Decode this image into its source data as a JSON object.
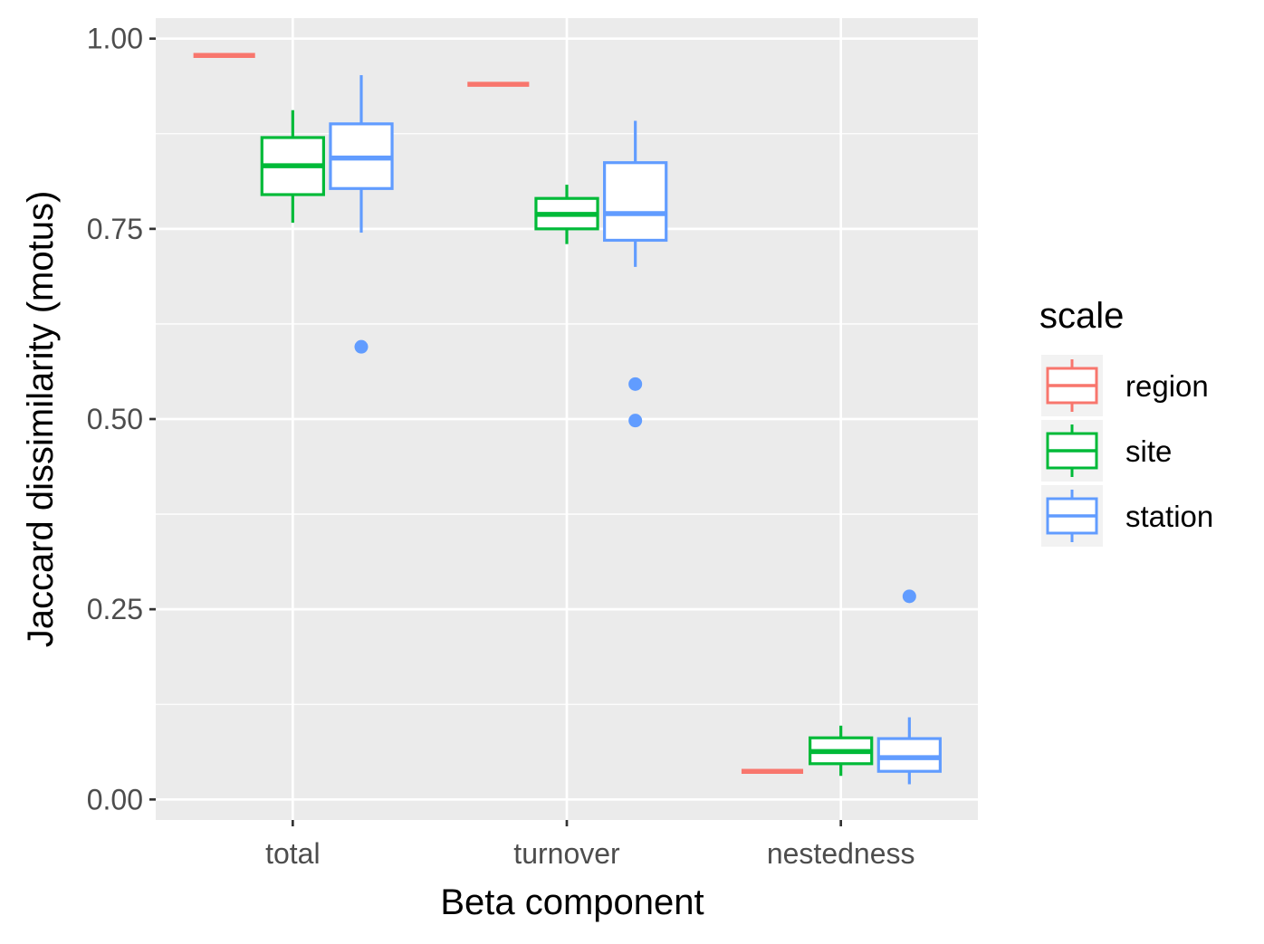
{
  "chart_data": {
    "type": "boxplot",
    "xlabel": "Beta component",
    "ylabel": "Jaccard dissimilarity (motus)",
    "categories": [
      "total",
      "turnover",
      "nestedness"
    ],
    "ylim": [
      -0.027,
      1.027
    ],
    "yticks": [
      {
        "value": 0.0,
        "label": "0.00"
      },
      {
        "value": 0.25,
        "label": "0.25"
      },
      {
        "value": 0.5,
        "label": "0.50"
      },
      {
        "value": 0.75,
        "label": "0.75"
      },
      {
        "value": 1.0,
        "label": "1.00"
      }
    ],
    "grid": true,
    "legend": {
      "title": "scale",
      "position": "right"
    },
    "series": [
      {
        "name": "region",
        "color": "#F8766D",
        "boxes": [
          {
            "category": "total",
            "min": 0.978,
            "q1": 0.978,
            "median": 0.978,
            "q3": 0.978,
            "max": 0.978,
            "outliers": []
          },
          {
            "category": "turnover",
            "min": 0.94,
            "q1": 0.94,
            "median": 0.94,
            "q3": 0.94,
            "max": 0.94,
            "outliers": []
          },
          {
            "category": "nestedness",
            "min": 0.037,
            "q1": 0.037,
            "median": 0.037,
            "q3": 0.037,
            "max": 0.037,
            "outliers": []
          }
        ]
      },
      {
        "name": "site",
        "color": "#00BA38",
        "boxes": [
          {
            "category": "total",
            "min": 0.758,
            "q1": 0.795,
            "median": 0.833,
            "q3": 0.87,
            "max": 0.906,
            "outliers": []
          },
          {
            "category": "turnover",
            "min": 0.73,
            "q1": 0.75,
            "median": 0.769,
            "q3": 0.79,
            "max": 0.808,
            "outliers": []
          },
          {
            "category": "nestedness",
            "min": 0.031,
            "q1": 0.047,
            "median": 0.063,
            "q3": 0.081,
            "max": 0.097,
            "outliers": []
          }
        ]
      },
      {
        "name": "station",
        "color": "#619CFF",
        "boxes": [
          {
            "category": "total",
            "min": 0.745,
            "q1": 0.803,
            "median": 0.843,
            "q3": 0.888,
            "max": 0.952,
            "outliers": [
              0.595
            ]
          },
          {
            "category": "turnover",
            "min": 0.7,
            "q1": 0.735,
            "median": 0.77,
            "q3": 0.837,
            "max": 0.892,
            "outliers": [
              0.546,
              0.498
            ]
          },
          {
            "category": "nestedness",
            "min": 0.02,
            "q1": 0.037,
            "median": 0.055,
            "q3": 0.08,
            "max": 0.108,
            "outliers": [
              0.267
            ]
          }
        ]
      }
    ]
  }
}
